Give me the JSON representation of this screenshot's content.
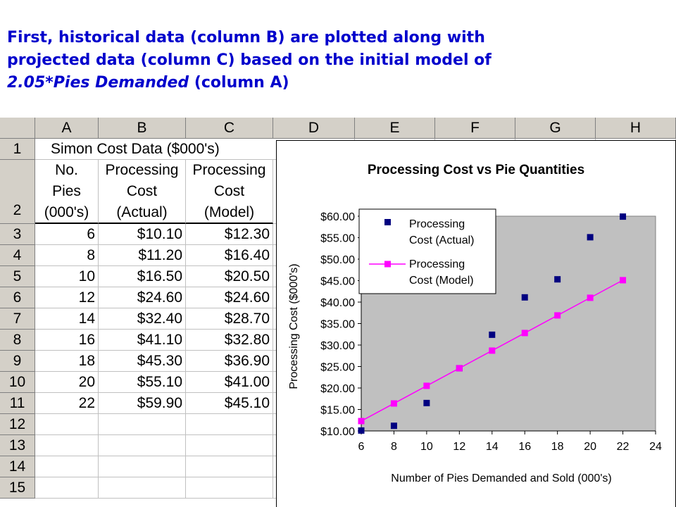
{
  "caption": {
    "line1": "First, historical data (column B) are plotted along with",
    "line2": "projected data (column C) based on the initial model of",
    "line3_italic": "2.05*Pies Demanded",
    "line3_rest": " (column A)"
  },
  "sheet": {
    "columns": [
      "A",
      "B",
      "C",
      "D",
      "E",
      "F",
      "G",
      "H"
    ],
    "rows": [
      "1",
      "2",
      "3",
      "4",
      "5",
      "6",
      "7",
      "8",
      "9",
      "10",
      "11",
      "12",
      "13",
      "14",
      "15"
    ],
    "title": "Simon Cost Data ($000's)",
    "headers": {
      "a": [
        "No.",
        "Pies",
        "(000's)"
      ],
      "b": [
        "Processing",
        "Cost",
        "(Actual)"
      ],
      "c": [
        "Processing",
        "Cost",
        "(Model)"
      ]
    },
    "data": [
      [
        "6",
        "$10.10",
        "$12.30"
      ],
      [
        "8",
        "$11.20",
        "$16.40"
      ],
      [
        "10",
        "$16.50",
        "$20.50"
      ],
      [
        "12",
        "$24.60",
        "$24.60"
      ],
      [
        "14",
        "$32.40",
        "$28.70"
      ],
      [
        "16",
        "$41.10",
        "$32.80"
      ],
      [
        "18",
        "$45.30",
        "$36.90"
      ],
      [
        "20",
        "$55.10",
        "$41.00"
      ],
      [
        "22",
        "$59.90",
        "$45.10"
      ]
    ]
  },
  "chart_data": {
    "type": "scatter",
    "title": "Processing Cost vs Pie Quantities",
    "xlabel": "Number of Pies Demanded and Sold (000's)",
    "ylabel": "Processing Cost ($000's)",
    "xlim": [
      6,
      24
    ],
    "ylim": [
      10,
      60
    ],
    "x_ticks": [
      "6",
      "8",
      "10",
      "12",
      "14",
      "16",
      "18",
      "20",
      "22",
      "24"
    ],
    "y_ticks": [
      "$10.00",
      "$15.00",
      "$20.00",
      "$25.00",
      "$30.00",
      "$35.00",
      "$40.00",
      "$45.00",
      "$50.00",
      "$55.00",
      "$60.00"
    ],
    "legend_position": "top-left",
    "grid": false,
    "plot_background": "#c0c0c0",
    "series": [
      {
        "name": "Processing Cost (Actual)",
        "legend_lines": [
          "Processing",
          "Cost (Actual)"
        ],
        "color": "#000080",
        "line": false,
        "x": [
          6,
          8,
          10,
          12,
          14,
          16,
          18,
          20,
          22
        ],
        "y": [
          10.1,
          11.2,
          16.5,
          24.6,
          32.4,
          41.1,
          45.3,
          55.1,
          59.9
        ]
      },
      {
        "name": "Processing Cost (Model)",
        "legend_lines": [
          "Processing",
          "Cost (Model)"
        ],
        "color": "#ff00ff",
        "line": true,
        "x": [
          6,
          8,
          10,
          12,
          14,
          16,
          18,
          20,
          22
        ],
        "y": [
          12.3,
          16.4,
          20.5,
          24.6,
          28.7,
          32.8,
          36.9,
          41.0,
          45.1
        ]
      }
    ]
  }
}
